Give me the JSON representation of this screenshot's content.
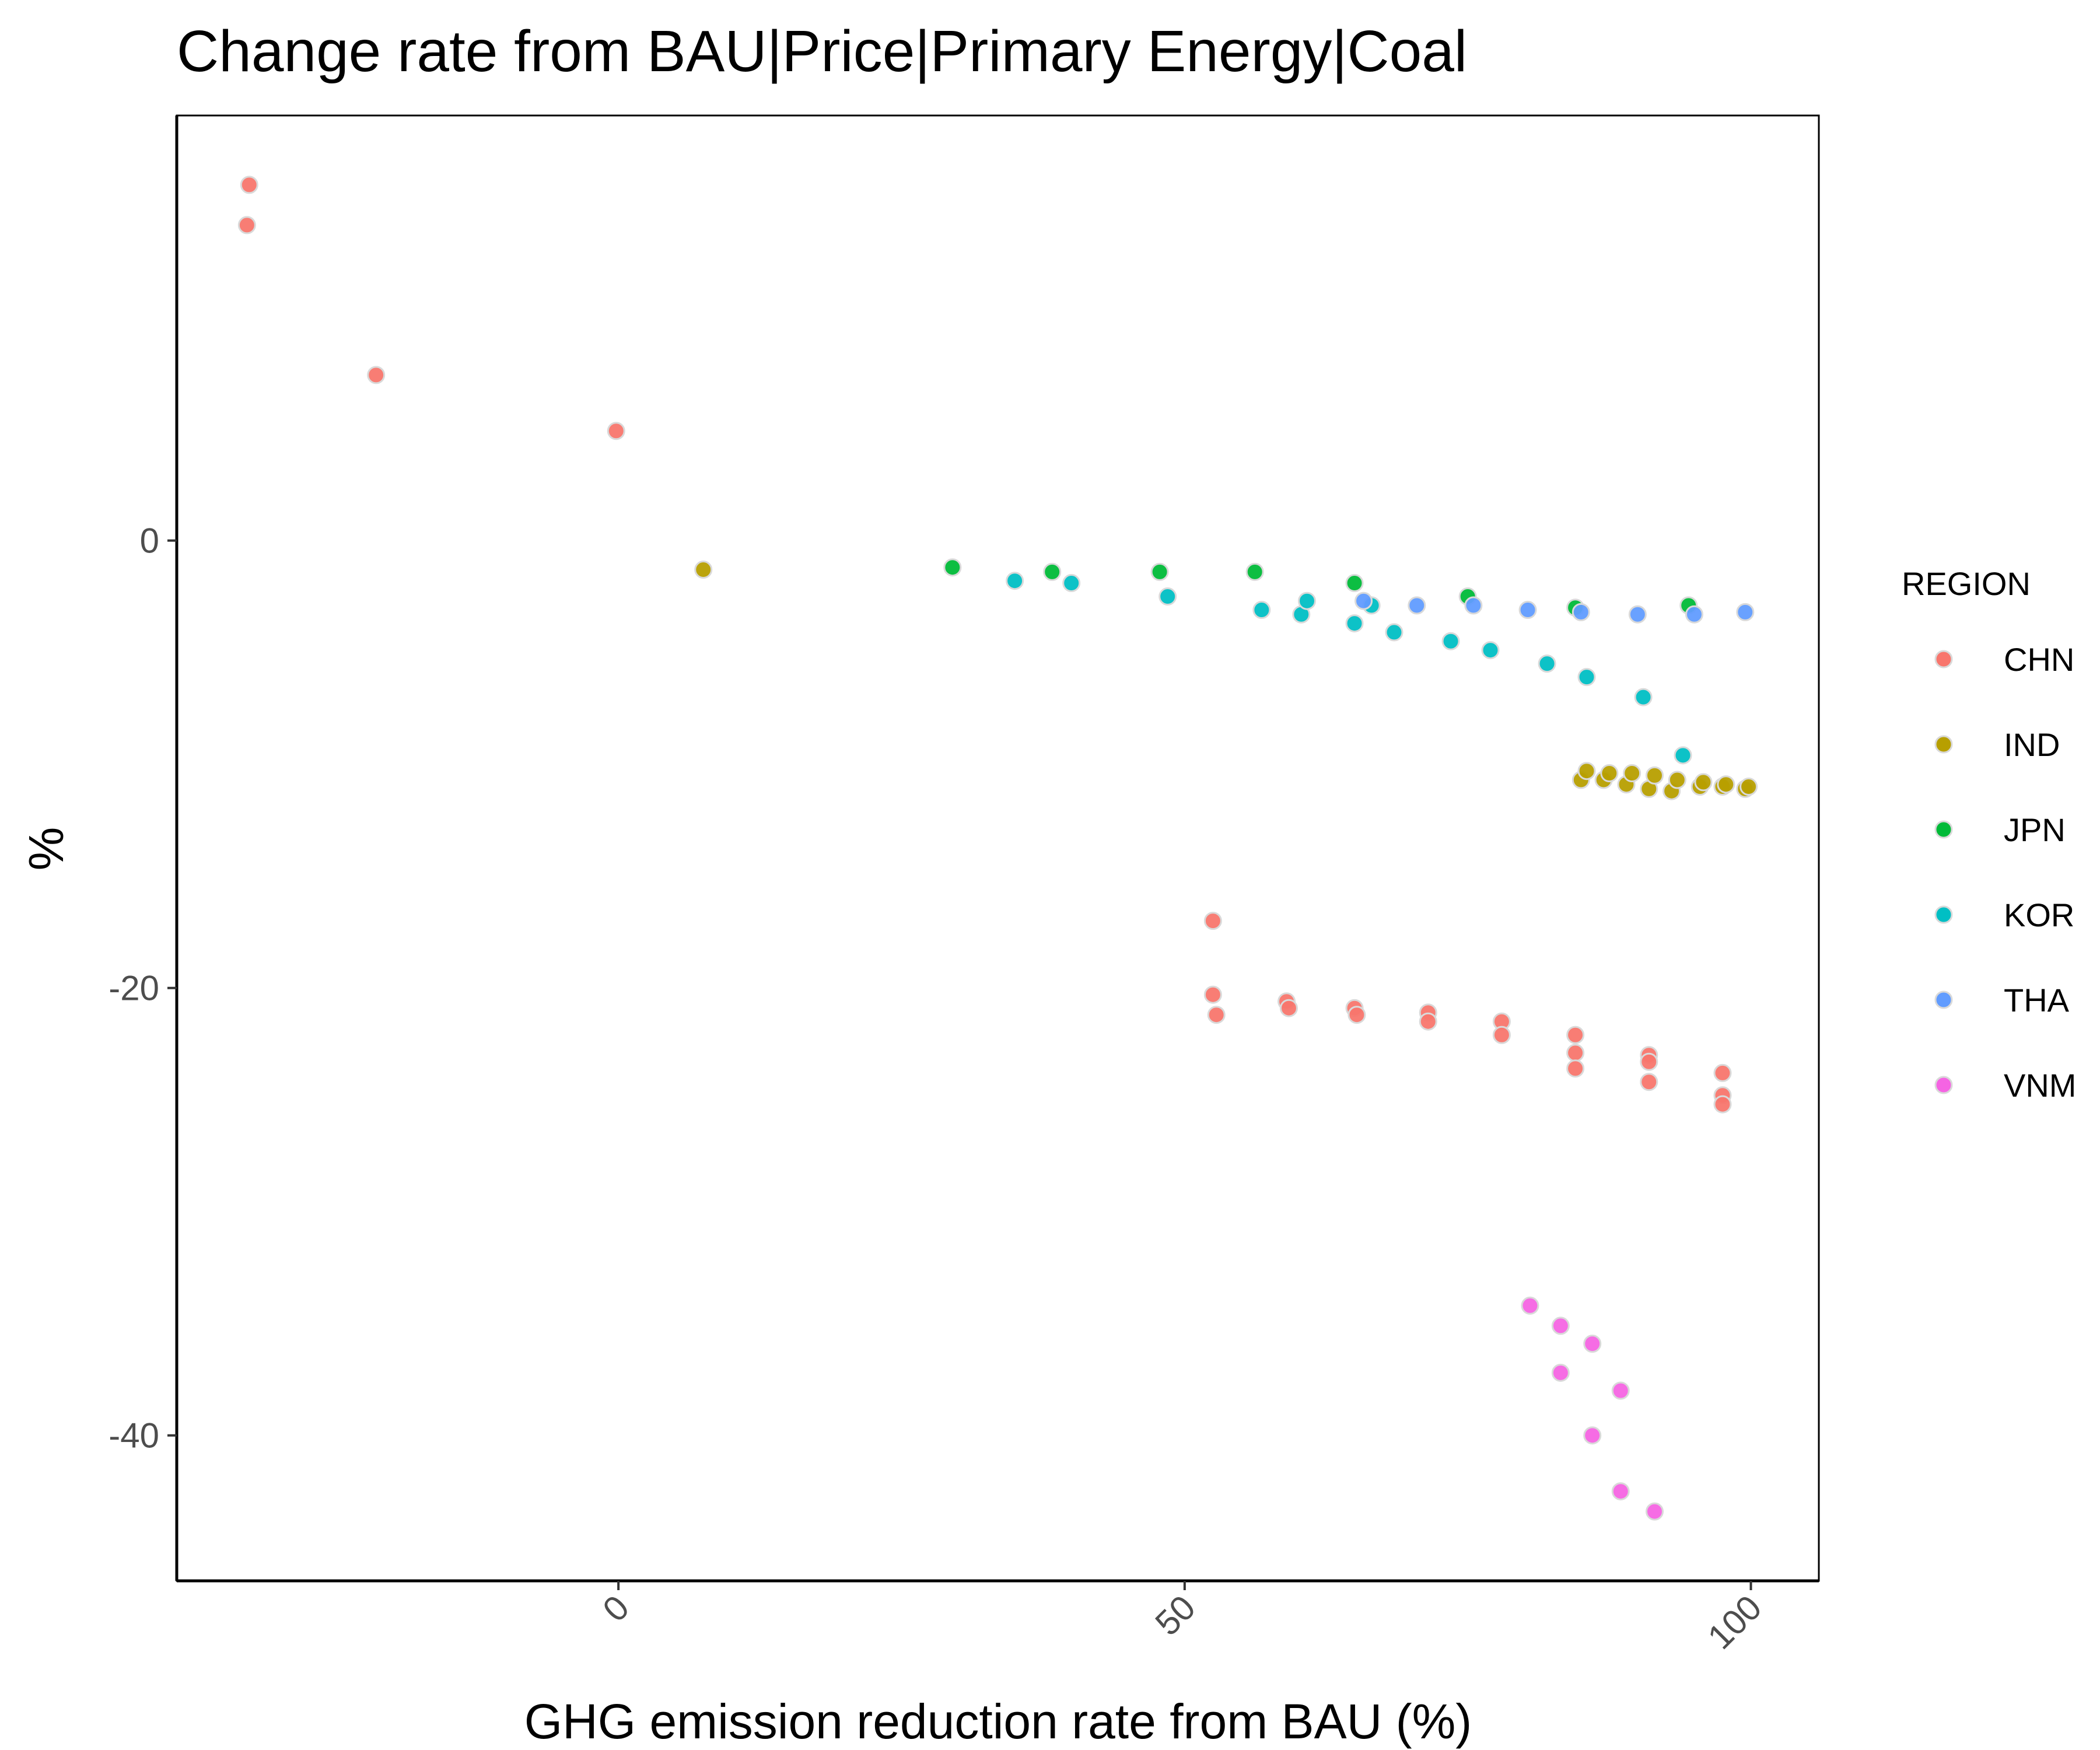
{
  "chart_data": {
    "type": "scatter",
    "title": "Change rate from BAU|Price|Primary Energy|Coal",
    "xlabel": "GHG emission reduction rate from BAU (%)",
    "ylabel": "%",
    "xlim": [
      -39,
      106
    ],
    "ylim": [
      -46.5,
      19
    ],
    "x_ticks": [
      0,
      50,
      100
    ],
    "y_ticks": [
      0,
      -20,
      -40
    ],
    "grid": false,
    "legend": {
      "title": "REGION",
      "position": "right"
    },
    "series": [
      {
        "name": "CHN",
        "color": "#F8766D",
        "points": [
          [
            -32.6,
            15.9
          ],
          [
            -32.8,
            14.1
          ],
          [
            -21.4,
            7.4
          ],
          [
            -0.2,
            4.9
          ],
          [
            52.5,
            -17.0
          ],
          [
            52.5,
            -20.3
          ],
          [
            52.8,
            -21.2
          ],
          [
            59.0,
            -20.6
          ],
          [
            59.2,
            -20.9
          ],
          [
            65.0,
            -20.9
          ],
          [
            65.2,
            -21.2
          ],
          [
            71.5,
            -21.1
          ],
          [
            71.5,
            -21.5
          ],
          [
            78.0,
            -21.5
          ],
          [
            78.0,
            -22.1
          ],
          [
            84.5,
            -22.1
          ],
          [
            84.5,
            -22.9
          ],
          [
            84.5,
            -23.6
          ],
          [
            91.0,
            -23.0
          ],
          [
            91.0,
            -23.3
          ],
          [
            91.0,
            -24.2
          ],
          [
            97.5,
            -23.8
          ],
          [
            97.5,
            -24.8
          ],
          [
            97.5,
            -25.2
          ]
        ]
      },
      {
        "name": "IND",
        "color": "#B79F00",
        "points": [
          [
            7.5,
            -1.3
          ],
          [
            85.0,
            -10.7
          ],
          [
            85.5,
            -10.3
          ],
          [
            87.0,
            -10.7
          ],
          [
            87.5,
            -10.4
          ],
          [
            89.0,
            -10.9
          ],
          [
            89.5,
            -10.4
          ],
          [
            91.0,
            -11.1
          ],
          [
            91.5,
            -10.5
          ],
          [
            93.0,
            -11.2
          ],
          [
            93.5,
            -10.7
          ],
          [
            95.5,
            -11.0
          ],
          [
            95.8,
            -10.8
          ],
          [
            97.5,
            -11.0
          ],
          [
            97.8,
            -10.9
          ],
          [
            99.5,
            -11.1
          ],
          [
            99.8,
            -11.0
          ]
        ]
      },
      {
        "name": "JPN",
        "color": "#00BA38",
        "points": [
          [
            29.5,
            -1.2
          ],
          [
            38.3,
            -1.4
          ],
          [
            47.8,
            -1.4
          ],
          [
            56.2,
            -1.4
          ],
          [
            65.0,
            -1.9
          ],
          [
            75.0,
            -2.5
          ],
          [
            84.5,
            -3.0
          ],
          [
            94.5,
            -2.9
          ]
        ]
      },
      {
        "name": "KOR",
        "color": "#00BFC4",
        "points": [
          [
            35.0,
            -1.8
          ],
          [
            40.0,
            -1.9
          ],
          [
            48.5,
            -2.5
          ],
          [
            56.8,
            -3.1
          ],
          [
            60.3,
            -3.3
          ],
          [
            60.8,
            -2.7
          ],
          [
            65.0,
            -3.7
          ],
          [
            66.5,
            -2.9
          ],
          [
            68.5,
            -4.1
          ],
          [
            73.5,
            -4.5
          ],
          [
            77.0,
            -4.9
          ],
          [
            82.0,
            -5.5
          ],
          [
            85.5,
            -6.1
          ],
          [
            90.5,
            -7.0
          ],
          [
            94.0,
            -9.6
          ]
        ]
      },
      {
        "name": "THA",
        "color": "#619CFF",
        "points": [
          [
            65.8,
            -2.7
          ],
          [
            70.5,
            -2.9
          ],
          [
            75.5,
            -2.9
          ],
          [
            80.3,
            -3.1
          ],
          [
            85.0,
            -3.2
          ],
          [
            90.0,
            -3.3
          ],
          [
            95.0,
            -3.3
          ],
          [
            99.5,
            -3.2
          ]
        ]
      },
      {
        "name": "VNM",
        "color": "#F564E3",
        "points": [
          [
            80.5,
            -34.2
          ],
          [
            83.2,
            -35.1
          ],
          [
            83.2,
            -37.2
          ],
          [
            86.0,
            -35.9
          ],
          [
            86.0,
            -40.0
          ],
          [
            88.5,
            -38.0
          ],
          [
            88.5,
            -42.5
          ],
          [
            91.5,
            -43.4
          ]
        ]
      }
    ]
  }
}
